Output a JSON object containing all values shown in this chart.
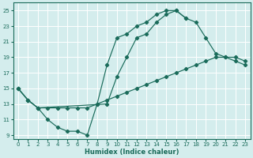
{
  "xlabel": "Humidex (Indice chaleur)",
  "bg_color": "#d4eded",
  "grid_color": "#ffffff",
  "line_color": "#1a6b5a",
  "xlim": [
    -0.5,
    23.5
  ],
  "ylim": [
    8.5,
    26
  ],
  "xticks": [
    0,
    1,
    2,
    3,
    4,
    5,
    6,
    7,
    8,
    9,
    10,
    11,
    12,
    13,
    14,
    15,
    16,
    17,
    18,
    19,
    20,
    21,
    22,
    23
  ],
  "yticks": [
    9,
    11,
    13,
    15,
    17,
    19,
    21,
    23,
    25
  ],
  "curve1_x": [
    0,
    1,
    2,
    3,
    4,
    5,
    6,
    7,
    8,
    9,
    10,
    11,
    12,
    13,
    14,
    15,
    16,
    17
  ],
  "curve1_y": [
    15,
    13.5,
    12.5,
    11.0,
    10.0,
    9.5,
    9.5,
    9.0,
    13.0,
    18.0,
    21.5,
    22.0,
    23.0,
    23.5,
    24.5,
    25.0,
    25.0,
    24.0
  ],
  "curve2_x": [
    0,
    1,
    2,
    9,
    10,
    11,
    12,
    13,
    14,
    15,
    16,
    17,
    18,
    19,
    20,
    21,
    22,
    23
  ],
  "curve2_y": [
    15,
    13.5,
    12.5,
    13.0,
    16.5,
    19.0,
    21.5,
    22.0,
    23.5,
    24.5,
    25.0,
    24.0,
    23.5,
    21.5,
    19.5,
    19.0,
    19.0,
    18.5
  ],
  "curve3_x": [
    0,
    1,
    2,
    3,
    4,
    5,
    6,
    7,
    8,
    9,
    10,
    11,
    12,
    13,
    14,
    15,
    16,
    17,
    18,
    19,
    20,
    21,
    22,
    23
  ],
  "curve3_y": [
    15.0,
    13.5,
    12.5,
    12.5,
    12.5,
    12.5,
    12.5,
    12.5,
    13.0,
    13.5,
    14.0,
    14.5,
    15.0,
    15.5,
    16.0,
    16.5,
    17.0,
    17.5,
    18.0,
    18.5,
    19.0,
    19.0,
    18.5,
    18.0
  ]
}
